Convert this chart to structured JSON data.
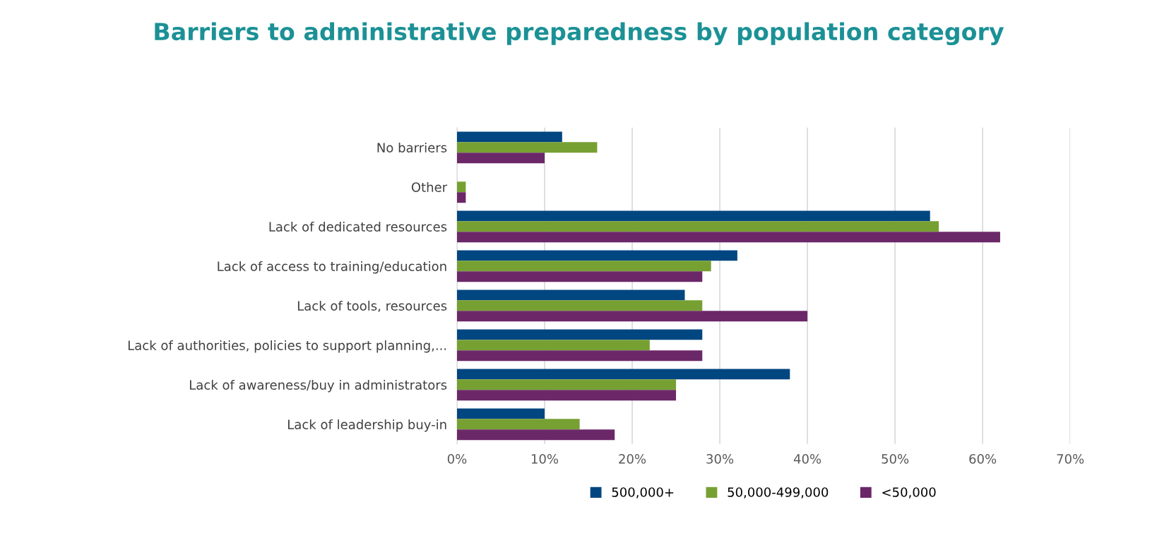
{
  "chart_data": {
    "type": "bar",
    "orientation": "horizontal",
    "title": "Barriers to administrative preparedness by population category",
    "categories": [
      "No barriers",
      "Other",
      "Lack of dedicated resources",
      "Lack of access to training/education",
      "Lack of tools, resources",
      "Lack of authorities, policies to support planning,...",
      "Lack of awareness/buy in administrators",
      "Lack of leadership buy-in"
    ],
    "series": [
      {
        "name": "500,000+",
        "color": "#004680",
        "values": [
          12,
          0,
          54,
          32,
          26,
          28,
          38,
          10
        ]
      },
      {
        "name": "50,000-499,000",
        "color": "#77a033",
        "values": [
          16,
          1,
          55,
          29,
          28,
          22,
          25,
          14
        ]
      },
      {
        "name": "<50,000",
        "color": "#6b2868",
        "values": [
          10,
          1,
          62,
          28,
          40,
          28,
          25,
          18
        ]
      }
    ],
    "xlim": [
      0,
      70
    ],
    "xticks": [
      {
        "value": 0,
        "label": "0%"
      },
      {
        "value": 10,
        "label": "10%"
      },
      {
        "value": 20,
        "label": "20%"
      },
      {
        "value": 30,
        "label": "30%"
      },
      {
        "value": 40,
        "label": "40%"
      },
      {
        "value": 50,
        "label": "50%"
      },
      {
        "value": 60,
        "label": "60%"
      },
      {
        "value": 70,
        "label": "70%"
      }
    ],
    "grid": "x",
    "legend": "bottom"
  }
}
